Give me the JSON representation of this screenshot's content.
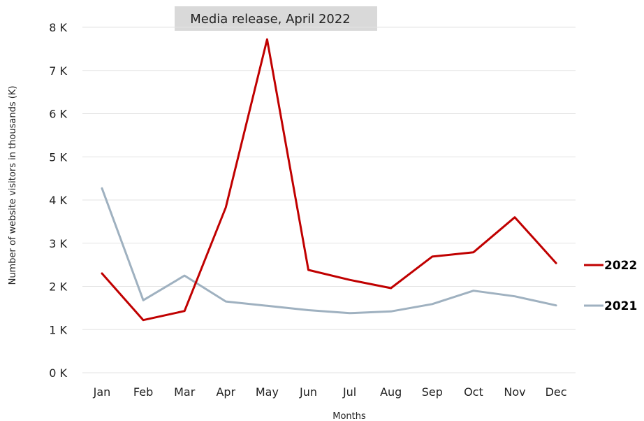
{
  "chart_data": {
    "type": "line",
    "title": "",
    "categories": [
      "Jan",
      "Feb",
      "Mar",
      "Apr",
      "May",
      "Jun",
      "Jul",
      "Aug",
      "Sep",
      "Oct",
      "Nov",
      "Dec"
    ],
    "series": [
      {
        "name": "2022",
        "color": "#c00000",
        "values": [
          2.3,
          1.22,
          1.43,
          3.83,
          7.72,
          2.38,
          2.15,
          1.96,
          2.69,
          2.79,
          3.6,
          2.54
        ]
      },
      {
        "name": "2021",
        "color": "#9fb1c0",
        "values": [
          4.27,
          1.68,
          2.25,
          1.65,
          1.55,
          1.45,
          1.38,
          1.42,
          1.59,
          1.9,
          1.77,
          1.56
        ]
      }
    ],
    "xlabel": "Months",
    "ylabel": "Number of website visitors  in thousands (K)",
    "ylim": [
      0,
      8
    ],
    "yticks": [
      "0 K",
      "1 K",
      "2 K",
      "3 K",
      "4 K",
      "5 K",
      "6 K",
      "7 K",
      "8 K"
    ],
    "grid": true,
    "legend": "right",
    "annotation": "Media release, April 2022"
  }
}
